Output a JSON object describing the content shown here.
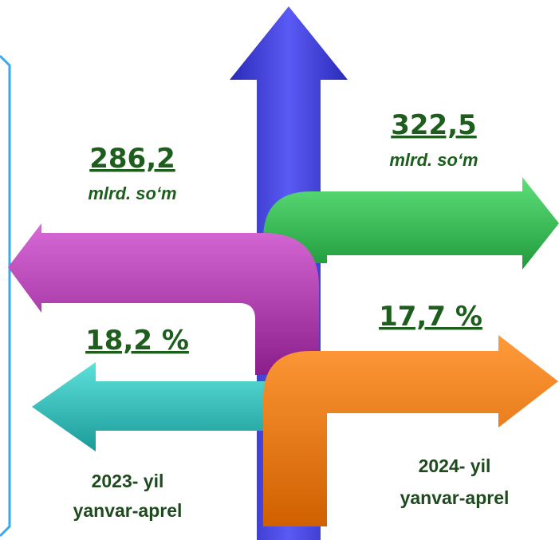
{
  "left": {
    "amount": "286,2",
    "unit": "mlrd. so‘m",
    "percent": "18,2 %",
    "year": "2023- yil",
    "months": "yanvar-aprel"
  },
  "right": {
    "amount": "322,5",
    "unit": "mlrd. so‘m",
    "percent": "17,7 %",
    "year": "2024- yil",
    "months": "yanvar-aprel"
  }
}
